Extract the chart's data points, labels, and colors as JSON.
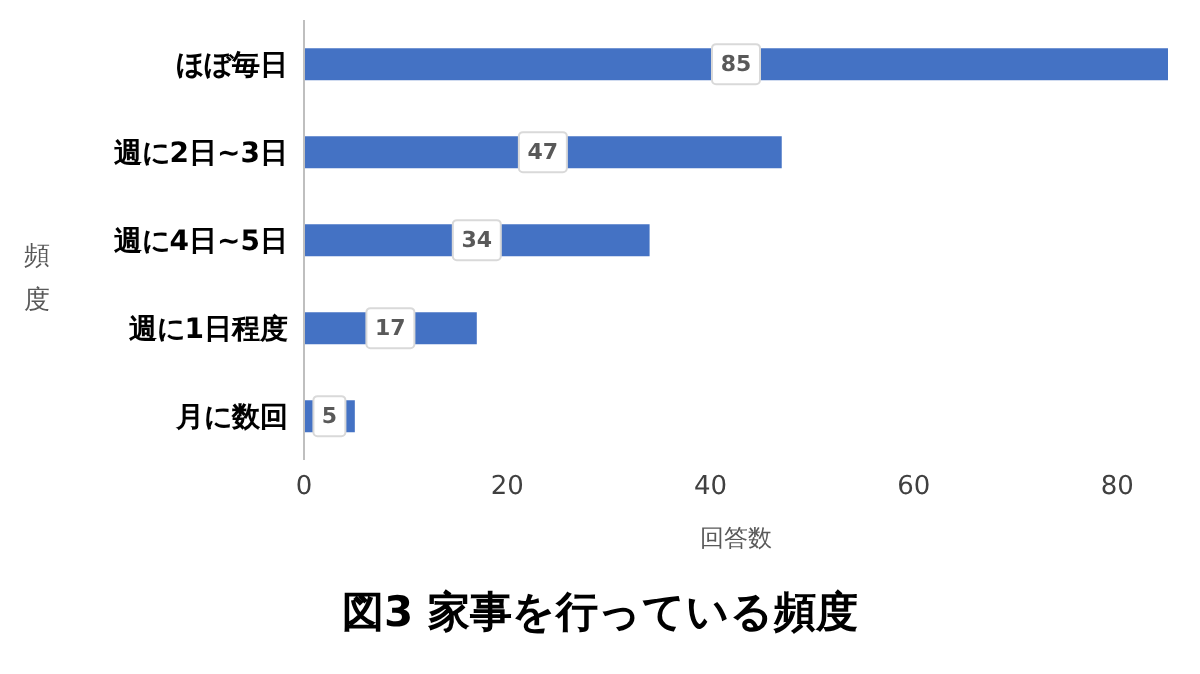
{
  "chart_data": {
    "type": "bar",
    "orientation": "horizontal",
    "title": "図3 家事を行っている頻度",
    "xlabel": "回答数",
    "ylabel": "頻度",
    "categories": [
      "ほぼ毎日",
      "週に2日~3日",
      "週に4日~5日",
      "週に1日程度",
      "月に数回"
    ],
    "values": [
      85,
      47,
      34,
      17,
      5
    ],
    "color": "#4472c4",
    "xlim": [
      0,
      85
    ],
    "xticks": [
      0,
      20,
      40,
      60,
      80
    ],
    "grid": false,
    "data_labels": true
  }
}
